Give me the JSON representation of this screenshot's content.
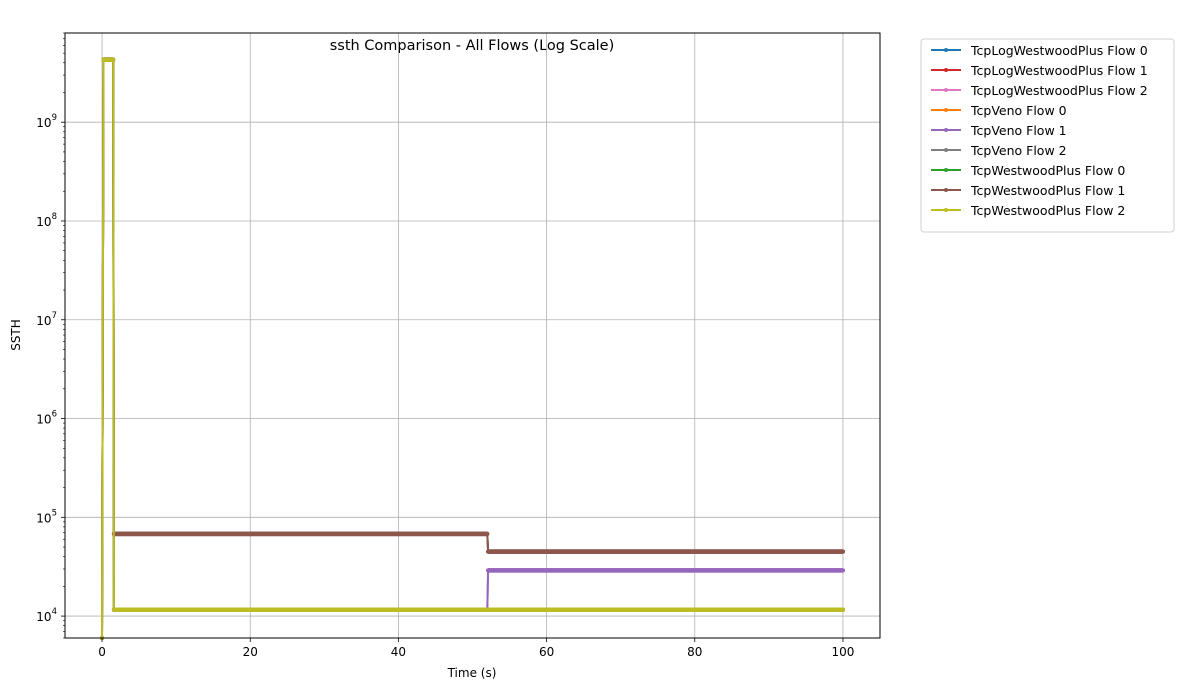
{
  "chart_data": {
    "type": "line",
    "title": "ssth Comparison - All Flows (Log Scale)",
    "xlabel": "Time (s)",
    "ylabel": "SSTH",
    "yscale": "log",
    "xlim": [
      -5,
      105
    ],
    "ylim": [
      6000,
      8000000000
    ],
    "x_ticks": [
      0,
      20,
      40,
      60,
      80,
      100
    ],
    "y_ticks": [
      {
        "value": 10000,
        "base": "10",
        "exp": "4"
      },
      {
        "value": 100000,
        "base": "10",
        "exp": "5"
      },
      {
        "value": 1000000,
        "base": "10",
        "exp": "6"
      },
      {
        "value": 10000000,
        "base": "10",
        "exp": "7"
      },
      {
        "value": 100000000,
        "base": "10",
        "exp": "8"
      },
      {
        "value": 1000000000,
        "base": "10",
        "exp": "9"
      }
    ],
    "grid": true,
    "legend_position": "outside-top-right",
    "series": [
      {
        "name": "TcpLogWestwoodPlus Flow 0",
        "color": "#1f77b4",
        "x": [
          0,
          0.2,
          1.5,
          1.6,
          52,
          52.1,
          100
        ],
        "y": [
          6000,
          4294967295,
          4294967295,
          11600,
          11600,
          11600,
          11600
        ]
      },
      {
        "name": "TcpLogWestwoodPlus Flow 1",
        "color": "#d62728",
        "x": [
          0,
          0.2,
          1.5,
          1.6,
          52,
          52.1,
          100
        ],
        "y": [
          6000,
          4294967295,
          4294967295,
          68000,
          68000,
          45000,
          45000
        ]
      },
      {
        "name": "TcpLogWestwoodPlus Flow 2",
        "color": "#e377c2",
        "x": [
          0,
          0.2,
          1.5,
          1.6,
          52,
          52.1,
          100
        ],
        "y": [
          6000,
          4294967295,
          4294967295,
          11600,
          11600,
          29000,
          29000
        ]
      },
      {
        "name": "TcpVeno Flow 0",
        "color": "#ff7f0e",
        "x": [
          0,
          0.2,
          1.5,
          1.6,
          100
        ],
        "y": [
          6000,
          4294967295,
          4294967295,
          11600,
          11600
        ]
      },
      {
        "name": "TcpVeno Flow 1",
        "color": "#9467bd",
        "x": [
          0,
          0.2,
          1.5,
          1.6,
          52,
          52.1,
          100
        ],
        "y": [
          6000,
          4294967295,
          4294967295,
          11600,
          11600,
          29000,
          29000
        ]
      },
      {
        "name": "TcpVeno Flow 2",
        "color": "#7f7f7f",
        "x": [
          0,
          0.2,
          1.5,
          1.6,
          52,
          52.1,
          100
        ],
        "y": [
          6000,
          4294967295,
          4294967295,
          68000,
          68000,
          45000,
          45000
        ]
      },
      {
        "name": "TcpWestwoodPlus Flow 0",
        "color": "#2ca02c",
        "x": [
          0,
          0.2,
          1.5,
          1.6,
          100
        ],
        "y": [
          6000,
          4294967295,
          4294967295,
          11600,
          11600
        ]
      },
      {
        "name": "TcpWestwoodPlus Flow 1",
        "color": "#8c564b",
        "x": [
          0,
          0.2,
          1.5,
          1.6,
          52,
          52.1,
          100
        ],
        "y": [
          6000,
          4294967295,
          4294967295,
          68000,
          68000,
          45000,
          45000
        ]
      },
      {
        "name": "TcpWestwoodPlus Flow 2",
        "color": "#bcbd22",
        "x": [
          0,
          0.2,
          1.5,
          1.6,
          100
        ],
        "y": [
          6000,
          4294967295,
          4294967295,
          11600,
          11600
        ]
      }
    ]
  }
}
